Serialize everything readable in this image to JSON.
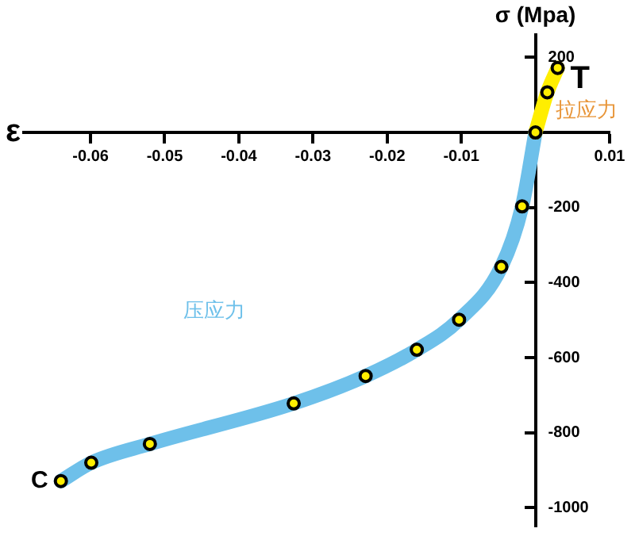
{
  "chart_data": {
    "type": "line",
    "xlabel": "ε",
    "ylabel": "σ (Mpa)",
    "xlim": [
      -0.069,
      0.01
    ],
    "ylim": [
      -1050,
      260
    ],
    "xticks": [
      -0.06,
      -0.05,
      -0.04,
      -0.03,
      -0.02,
      -0.01,
      0.01
    ],
    "yticks": [
      200,
      -200,
      -400,
      -600,
      -800,
      -1000
    ],
    "grid": false,
    "legend": false,
    "marker": "circle",
    "line_style": "solid",
    "series": [
      {
        "name": "拉应力",
        "color": "#ffee00",
        "x": [
          0,
          0.0016,
          0.003
        ],
        "values": [
          0,
          107,
          172
        ]
      },
      {
        "name": "压应力",
        "color": "#6ec0ea",
        "x": [
          -0.064,
          -0.0599,
          -0.052,
          -0.0326,
          -0.0229,
          -0.016,
          -0.0103,
          -0.0046,
          -0.0018,
          0
        ],
        "values": [
          -929,
          -880,
          -830,
          -722,
          -649,
          -579,
          -499,
          -358,
          -197,
          0
        ]
      }
    ],
    "annotations": [
      {
        "text": "T",
        "x": 0.003,
        "y": 172
      },
      {
        "text": "C",
        "x": -0.064,
        "y": -929
      }
    ]
  }
}
